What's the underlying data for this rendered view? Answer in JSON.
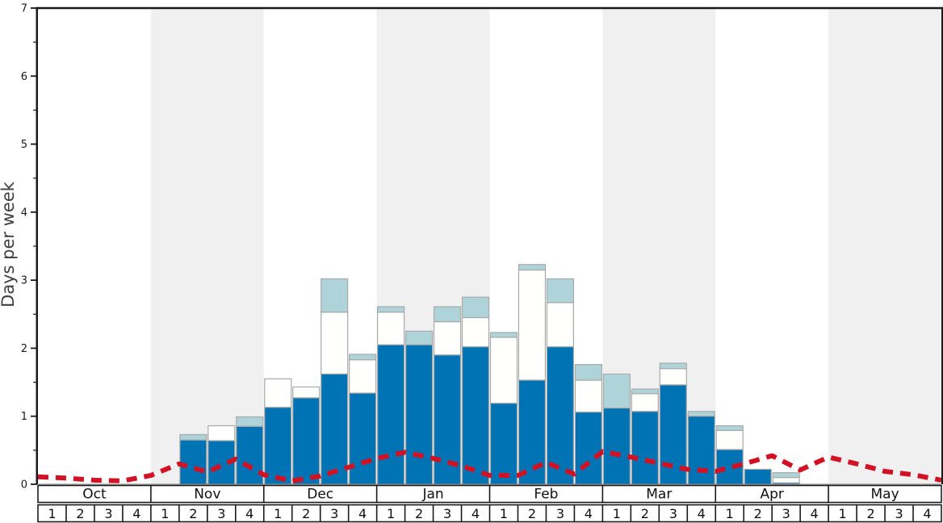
{
  "chart_data": {
    "type": "bar",
    "subtype": "stacked-bars-with-dashed-line-overlay",
    "title": "",
    "ylabel": "Days per week",
    "ylim": [
      0,
      7
    ],
    "y_tick_labels": [
      "0",
      "1",
      "2",
      "3",
      "4",
      "5",
      "6",
      "7"
    ],
    "y_minor_tick_interval": 0.5,
    "grid": "off",
    "legend": "none",
    "months": [
      "Oct",
      "Nov",
      "Dec",
      "Jan",
      "Feb",
      "Mar",
      "Apr",
      "May"
    ],
    "week_labels": [
      "1",
      "2",
      "3",
      "4"
    ],
    "weeks_per_month": 4,
    "shaded_month_bands": [
      "Nov",
      "Jan",
      "Mar",
      "May"
    ],
    "colors": {
      "dark_blue_segment": "#0073b4",
      "white_segment": "#fffffe",
      "light_blue_segment": "#aed4da",
      "red_dashed_line": "#d11224",
      "band_gray": "#f0f0f1",
      "segment_border": "#a9a9a9",
      "axis_black": "#1a1a1a"
    },
    "bars_note": "values are cumulative stack tops in days/week: dark_blue bottom stack, then white, then light_blue; weeks not listed have no bar",
    "bars": [
      {
        "month": "Nov",
        "week": 2,
        "dark_blue": 0.65,
        "light_blue": 0.73
      },
      {
        "month": "Nov",
        "week": 3,
        "dark_blue": 0.64,
        "white": 0.86
      },
      {
        "month": "Nov",
        "week": 4,
        "dark_blue": 0.85,
        "light_blue": 0.99
      },
      {
        "month": "Dec",
        "week": 1,
        "dark_blue": 1.13,
        "white": 1.55
      },
      {
        "month": "Dec",
        "week": 2,
        "dark_blue": 1.27,
        "white": 1.43
      },
      {
        "month": "Dec",
        "week": 3,
        "dark_blue": 1.62,
        "white": 2.53,
        "light_blue": 3.02
      },
      {
        "month": "Dec",
        "week": 4,
        "dark_blue": 1.34,
        "white": 1.83,
        "light_blue": 1.91
      },
      {
        "month": "Jan",
        "week": 1,
        "dark_blue": 2.05,
        "white": 2.53,
        "light_blue": 2.61
      },
      {
        "month": "Jan",
        "week": 2,
        "dark_blue": 2.05,
        "light_blue": 2.25
      },
      {
        "month": "Jan",
        "week": 3,
        "dark_blue": 1.9,
        "white": 2.39,
        "light_blue": 2.61
      },
      {
        "month": "Jan",
        "week": 4,
        "dark_blue": 2.02,
        "white": 2.45,
        "light_blue": 2.75
      },
      {
        "month": "Feb",
        "week": 1,
        "dark_blue": 1.19,
        "white": 2.16,
        "light_blue": 2.23
      },
      {
        "month": "Feb",
        "week": 2,
        "dark_blue": 1.53,
        "white": 3.15,
        "light_blue": 3.23
      },
      {
        "month": "Feb",
        "week": 3,
        "dark_blue": 2.02,
        "white": 2.67,
        "light_blue": 3.02
      },
      {
        "month": "Feb",
        "week": 4,
        "dark_blue": 1.06,
        "white": 1.53,
        "light_blue": 1.76
      },
      {
        "month": "Mar",
        "week": 1,
        "dark_blue": 1.12,
        "light_blue": 1.62
      },
      {
        "month": "Mar",
        "week": 2,
        "dark_blue": 1.07,
        "white": 1.33,
        "light_blue": 1.4
      },
      {
        "month": "Mar",
        "week": 3,
        "dark_blue": 1.46,
        "white": 1.7,
        "light_blue": 1.78
      },
      {
        "month": "Mar",
        "week": 4,
        "dark_blue": 1.0,
        "light_blue": 1.07
      },
      {
        "month": "Apr",
        "week": 1,
        "dark_blue": 0.51,
        "white": 0.79,
        "light_blue": 0.86
      },
      {
        "month": "Apr",
        "week": 2,
        "dark_blue": 0.22
      },
      {
        "month": "Apr",
        "week": 3,
        "dark_blue": 0.02,
        "white": 0.1,
        "light_blue": 0.17
      }
    ],
    "red_line_note": "one value per week boundary from start of Oct week1 to end of May week4 (33 points), days/week",
    "red_line_values": [
      0.11,
      0.09,
      0.06,
      0.05,
      0.13,
      0.3,
      0.18,
      0.37,
      0.14,
      0.05,
      0.12,
      0.25,
      0.38,
      0.47,
      0.38,
      0.27,
      0.13,
      0.13,
      0.32,
      0.15,
      0.48,
      0.4,
      0.31,
      0.22,
      0.19,
      0.3,
      0.42,
      0.21,
      0.4,
      0.3,
      0.19,
      0.14,
      0.06
    ]
  }
}
